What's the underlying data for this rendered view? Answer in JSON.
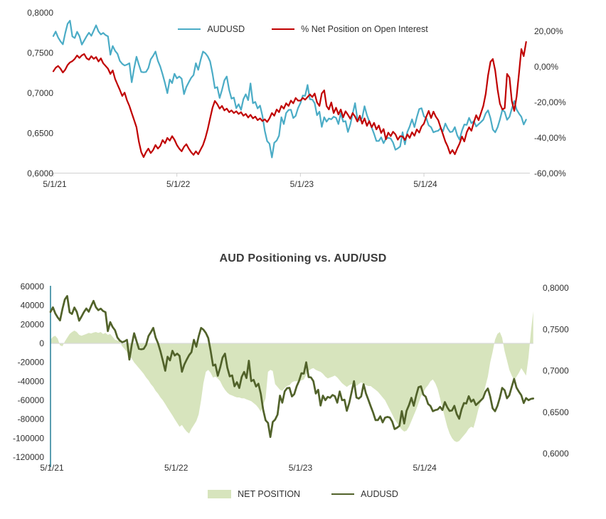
{
  "top_chart": {
    "legend": [
      {
        "label": "AUDUSD",
        "color": "#4BACC6"
      },
      {
        "label": "% Net Position on Open Interest",
        "color": "#C00000"
      }
    ]
  },
  "bottom_chart": {
    "title": "AUD Positioning vs. AUD/USD",
    "legend": [
      {
        "label": "NET POSITION",
        "color": "#D7E4BD"
      },
      {
        "label": "AUDUSD",
        "color": "#51622A"
      }
    ]
  },
  "colors": {
    "audusd_blue": "#4BACC6",
    "net_pct_red": "#C00000",
    "audusd_olive": "#51622A",
    "net_position_fill": "#D7E4BD",
    "axis_teal": "#31859C",
    "axis_gray": "#D0D0D0",
    "grid_gray": "#D9D9D9",
    "text": "#303030"
  },
  "shared_series": {
    "audusd": [
      0.771,
      0.7766,
      0.7693,
      0.7645,
      0.7608,
      0.7746,
      0.7862,
      0.7902,
      0.7706,
      0.7686,
      0.7764,
      0.771,
      0.7604,
      0.7656,
      0.7709,
      0.7752,
      0.7713,
      0.778,
      0.7844,
      0.7768,
      0.7731,
      0.775,
      0.7722,
      0.7707,
      0.7478,
      0.7587,
      0.7527,
      0.7489,
      0.7401,
      0.7365,
      0.7344,
      0.7355,
      0.7373,
      0.7135,
      0.731,
      0.7453,
      0.7356,
      0.7264,
      0.7259,
      0.7264,
      0.7312,
      0.742,
      0.7465,
      0.7518,
      0.7402,
      0.7331,
      0.7234,
      0.7123,
      0.7,
      0.717,
      0.7125,
      0.7241,
      0.7184,
      0.7207,
      0.718,
      0.6988,
      0.7076,
      0.7135,
      0.7189,
      0.7225,
      0.7373,
      0.729,
      0.7414,
      0.7518,
      0.7496,
      0.7457,
      0.7395,
      0.7243,
      0.7063,
      0.7075,
      0.694,
      0.704,
      0.7159,
      0.7207,
      0.7039,
      0.6932,
      0.6944,
      0.6813,
      0.6862,
      0.6792,
      0.6925,
      0.6986,
      0.6912,
      0.7121,
      0.6875,
      0.689,
      0.681,
      0.6844,
      0.672,
      0.653,
      0.6403,
      0.637,
      0.62,
      0.6382,
      0.641,
      0.647,
      0.67,
      0.6615,
      0.6752,
      0.679,
      0.6794,
      0.669,
      0.6718,
      0.6813,
      0.6876,
      0.697,
      0.6966,
      0.7102,
      0.6924,
      0.692,
      0.6875,
      0.6725,
      0.677,
      0.658,
      0.67,
      0.6645,
      0.6685,
      0.6674,
      0.6707,
      0.6693,
      0.6615,
      0.675,
      0.6645,
      0.6651,
      0.6517,
      0.661,
      0.6744,
      0.6875,
      0.6677,
      0.6664,
      0.669,
      0.6837,
      0.6726,
      0.6649,
      0.6571,
      0.6494,
      0.6404,
      0.6404,
      0.645,
      0.6377,
      0.6434,
      0.6443,
      0.6435,
      0.6385,
      0.6296,
      0.6312,
      0.6336,
      0.6513,
      0.6363,
      0.6516,
      0.6585,
      0.6674,
      0.6577,
      0.67,
      0.6802,
      0.6812,
      0.6712,
      0.6687,
      0.6599,
      0.6575,
      0.6512,
      0.6525,
      0.6532,
      0.6564,
      0.6526,
      0.6622,
      0.656,
      0.6515,
      0.6521,
      0.6577,
      0.6476,
      0.6421,
      0.6533,
      0.661,
      0.6605,
      0.6693,
      0.6626,
      0.6652,
      0.6585,
      0.6613,
      0.664,
      0.667,
      0.6748,
      0.6786,
      0.6688,
      0.6547,
      0.6512,
      0.6575,
      0.6673,
      0.6793,
      0.6766,
      0.6668,
      0.6705,
      0.6807,
      0.6902,
      0.6796,
      0.6747,
      0.6705,
      0.661,
      0.667,
      0.6645,
      0.666,
      0.6665
    ],
    "net_position_pct_oi": [
      -2.5,
      -0.5,
      0.5,
      -1,
      -3.2,
      -1.6,
      1,
      2.5,
      3.2,
      4.5,
      6.4,
      5,
      6.5,
      7.2,
      4.8,
      4,
      6,
      4.5,
      5.5,
      3,
      4.8,
      2,
      0.5,
      -1,
      -4,
      -2,
      -6.8,
      -10,
      -13,
      -16.4,
      -14.5,
      -18.8,
      -22,
      -26,
      -30,
      -34,
      -42,
      -48,
      -50.8,
      -48,
      -46,
      -48.5,
      -46.8,
      -44,
      -46,
      -44.5,
      -41.2,
      -43,
      -40,
      -41.5,
      -39,
      -41,
      -44,
      -46,
      -47.5,
      -45,
      -43.5,
      -46,
      -48,
      -49.5,
      -47.5,
      -49.2,
      -46.5,
      -44,
      -40,
      -35,
      -29,
      -23,
      -19.2,
      -21,
      -23.5,
      -22,
      -24.5,
      -23.5,
      -25.5,
      -24.5,
      -26,
      -25,
      -26.5,
      -25.5,
      -27.5,
      -26.5,
      -28.5,
      -27,
      -29,
      -28,
      -30,
      -29,
      -30.5,
      -29.5,
      -31,
      -29,
      -26,
      -27.5,
      -24,
      -25.5,
      -22,
      -23.5,
      -20.5,
      -22,
      -19,
      -20.5,
      -17.5,
      -19,
      -19,
      -17.5,
      -18.5,
      -17,
      -15.5,
      -17,
      -15,
      -20,
      -22,
      -15,
      -13.2,
      -22,
      -24,
      -20,
      -26,
      -23,
      -26.8,
      -24,
      -28.4,
      -25,
      -27,
      -29.2,
      -26,
      -28,
      -30.8,
      -27.5,
      -32,
      -29,
      -33.2,
      -30.5,
      -34,
      -31.5,
      -35.2,
      -33,
      -37.2,
      -35,
      -40.8,
      -37,
      -39,
      -36.5,
      -38,
      -41,
      -39,
      -39.2,
      -41.2,
      -38,
      -40,
      -36.8,
      -38.8,
      -35.2,
      -37,
      -33.5,
      -32,
      -28,
      -24.8,
      -28.8,
      -25.2,
      -28,
      -30,
      -34,
      -38,
      -42,
      -44.8,
      -48.8,
      -46.8,
      -49.2,
      -46,
      -43.2,
      -39.2,
      -42,
      -36.8,
      -34,
      -36,
      -31.2,
      -27.2,
      -30,
      -26,
      -22,
      -15.2,
      -4.8,
      2.8,
      4.4,
      -2,
      -12.8,
      -20.8,
      -24,
      -23.2,
      -4,
      -6,
      -19.2,
      -24.8,
      -16.8,
      -4,
      10,
      6,
      14,
      15,
      13,
      15
    ],
    "net_position_contracts": [
      4000,
      7000,
      8000,
      5000,
      -2000,
      -3000,
      2000,
      6000,
      10000,
      12000,
      13500,
      12000,
      9000,
      8000,
      9000,
      10000,
      11000,
      10500,
      11500,
      12000,
      11000,
      12000,
      10000,
      11000,
      9000,
      10000,
      7000,
      4000,
      3000,
      2000,
      -3000,
      -6000,
      -9000,
      -13000,
      -16000,
      -20000,
      -23000,
      -26000,
      -29000,
      -32000,
      -36000,
      -39000,
      -43000,
      -46000,
      -50000,
      -53000,
      -57000,
      -60000,
      -64000,
      -68000,
      -72000,
      -76000,
      -80000,
      -84000,
      -88000,
      -86000,
      -90000,
      -93000,
      -95000,
      -90000,
      -86000,
      -82000,
      -75000,
      -60000,
      -42000,
      -30000,
      -28000,
      -31000,
      -36000,
      -35000,
      -37000,
      -40000,
      -45000,
      -49000,
      -52000,
      -54000,
      -55000,
      -56000,
      -57000,
      -57000,
      -58000,
      -58000,
      -59000,
      -60000,
      -61000,
      -63000,
      -65000,
      -68000,
      -72000,
      -65000,
      -58000,
      -30000,
      -28000,
      -29000,
      -43000,
      -46000,
      -49000,
      -50000,
      -47000,
      -45000,
      -44000,
      -41000,
      -40000,
      -40000,
      -40000,
      -39000,
      -38000,
      -33000,
      -29000,
      -27000,
      -26000,
      -28000,
      -29000,
      -30000,
      -32000,
      -35000,
      -37000,
      -36000,
      -35000,
      -34000,
      -36000,
      -39000,
      -42000,
      -44000,
      -46000,
      -44000,
      -43000,
      -44000,
      -45000,
      -43000,
      -41000,
      -43000,
      -44000,
      -45000,
      -45000,
      -47000,
      -49000,
      -51000,
      -54000,
      -57000,
      -60000,
      -65000,
      -70000,
      -75000,
      -80000,
      -84000,
      -88000,
      -91000,
      -93000,
      -92000,
      -88000,
      -82000,
      -76000,
      -70000,
      -63000,
      -56000,
      -52000,
      -47000,
      -44000,
      -40000,
      -38000,
      -42000,
      -48000,
      -58000,
      -68000,
      -78000,
      -88000,
      -95000,
      -100000,
      -103000,
      -104000,
      -103000,
      -100000,
      -97000,
      -94000,
      -90000,
      -88000,
      -89000,
      -80000,
      -70000,
      -62000,
      -54000,
      -45000,
      -35000,
      -20000,
      -9000,
      4000,
      10000,
      12000,
      6000,
      -8000,
      -18000,
      -28000,
      -34000,
      -39000,
      -35000,
      -31000,
      -26000,
      -30000,
      -34000,
      -15000,
      12000,
      34000
    ]
  },
  "chart_data": [
    {
      "type": "line",
      "title": "",
      "points_shown": 200,
      "x_tick_weeks": [
        0,
        52,
        104,
        156
      ],
      "x_tick_labels": [
        "5/1/21",
        "5/1/22",
        "5/1/23",
        "5/1/24"
      ],
      "left_axis": {
        "range": [
          0.6,
          0.8
        ],
        "tick_values": [
          0.8,
          0.75,
          0.7,
          0.65,
          0.6
        ],
        "tick_labels": [
          "0,8000",
          "0,7500",
          "0,7000",
          "0,6500",
          "0,6000"
        ]
      },
      "right_axis": {
        "range": [
          -60,
          20
        ],
        "tick_values": [
          20,
          0,
          -20,
          -40,
          -60
        ],
        "tick_labels": [
          "20,00%",
          "0,00%",
          "-20,00%",
          "-40,00%",
          "-60,00%"
        ]
      },
      "grid": false,
      "legend_position": "top",
      "series": [
        {
          "name": "AUDUSD",
          "axis": "left",
          "color": "#4BACC6",
          "values": "@audusd"
        },
        {
          "name": "% Net Position on Open Interest",
          "axis": "right",
          "color": "#C00000",
          "values": "@net_position_pct_oi"
        }
      ]
    },
    {
      "type": "area",
      "title": "AUD Positioning vs. AUD/USD",
      "points_shown": 203,
      "x_tick_weeks": [
        0,
        52,
        104,
        156
      ],
      "x_tick_labels": [
        "5/1/21",
        "5/1/22",
        "5/1/23",
        "5/1/24"
      ],
      "left_axis": {
        "range": [
          -120000,
          60000
        ],
        "tick_values": [
          60000,
          40000,
          20000,
          0,
          -20000,
          -40000,
          -60000,
          -80000,
          -100000,
          -120000
        ],
        "tick_labels": [
          "60000",
          "40000",
          "20000",
          "0",
          "-20000",
          "-40000",
          "-60000",
          "-80000",
          "-100000",
          "-120000"
        ]
      },
      "right_axis": {
        "range": [
          0.6,
          0.8
        ],
        "tick_values": [
          0.8,
          0.75,
          0.7,
          0.65,
          0.6
        ],
        "tick_labels": [
          "0,8000",
          "0,7500",
          "0,7000",
          "0,6500",
          "0,6000"
        ]
      },
      "grid": false,
      "legend_position": "bottom",
      "series": [
        {
          "name": "NET POSITION",
          "type": "area",
          "axis": "left",
          "color": "#D7E4BD",
          "values": "@net_position_contracts"
        },
        {
          "name": "AUDUSD",
          "type": "line",
          "axis": "right",
          "color": "#51622A",
          "values": "@audusd"
        }
      ]
    }
  ]
}
